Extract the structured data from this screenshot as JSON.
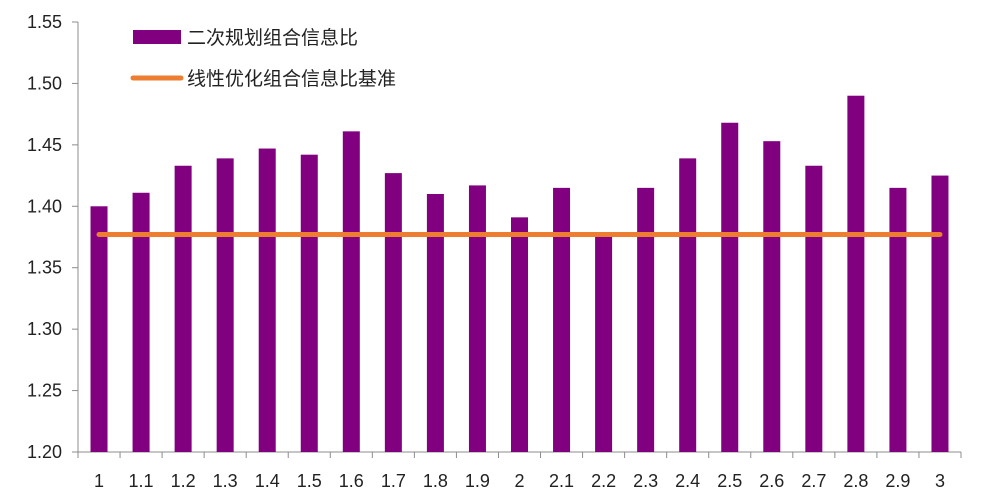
{
  "chart_data": {
    "type": "bar",
    "categories": [
      "1",
      "1.1",
      "1.2",
      "1.3",
      "1.4",
      "1.5",
      "1.6",
      "1.7",
      "1.8",
      "1.9",
      "2",
      "2.1",
      "2.2",
      "2.3",
      "2.4",
      "2.5",
      "2.6",
      "2.7",
      "2.8",
      "2.9",
      "3"
    ],
    "series": [
      {
        "name": "二次规划组合信息比",
        "type": "bar",
        "color": "#800080",
        "values": [
          1.4,
          1.411,
          1.433,
          1.439,
          1.447,
          1.442,
          1.461,
          1.427,
          1.41,
          1.417,
          1.391,
          1.415,
          1.377,
          1.415,
          1.439,
          1.468,
          1.453,
          1.433,
          1.49,
          1.415,
          1.425
        ]
      },
      {
        "name": "线性优化组合信息比基准",
        "type": "line",
        "color": "#ED7D31",
        "values": [
          1.377,
          1.377,
          1.377,
          1.377,
          1.377,
          1.377,
          1.377,
          1.377,
          1.377,
          1.377,
          1.377,
          1.377,
          1.377,
          1.377,
          1.377,
          1.377,
          1.377,
          1.377,
          1.377,
          1.377,
          1.377
        ]
      }
    ],
    "ylim": [
      1.2,
      1.55
    ],
    "yticks": [
      "1.20",
      "1.25",
      "1.30",
      "1.35",
      "1.40",
      "1.45",
      "1.50",
      "1.55"
    ],
    "title": "",
    "xlabel": "",
    "ylabel": "",
    "grid": false,
    "legend": "top-left"
  }
}
